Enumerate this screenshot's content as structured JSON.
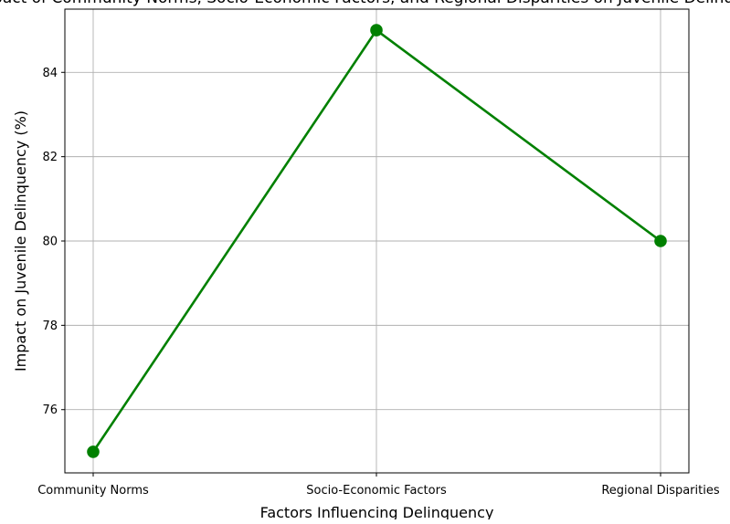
{
  "chart_data": {
    "type": "line",
    "title": "Impact of Community Norms, Socio-Economic Factors, and Regional Disparities on Juvenile Delinquency",
    "xlabel": "Factors Influencing Delinquency",
    "ylabel": "Impact on Juvenile Delinquency (%)",
    "categories": [
      "Community Norms",
      "Socio-Economic Factors",
      "Regional Disparities"
    ],
    "values": [
      75,
      85,
      80
    ],
    "ylim": [
      74.5,
      85.5
    ],
    "yticks": [
      76,
      78,
      80,
      82,
      84
    ],
    "grid": true,
    "colors": {
      "line": "#008000",
      "marker": "#008000",
      "grid": "#b0b0b0"
    }
  }
}
